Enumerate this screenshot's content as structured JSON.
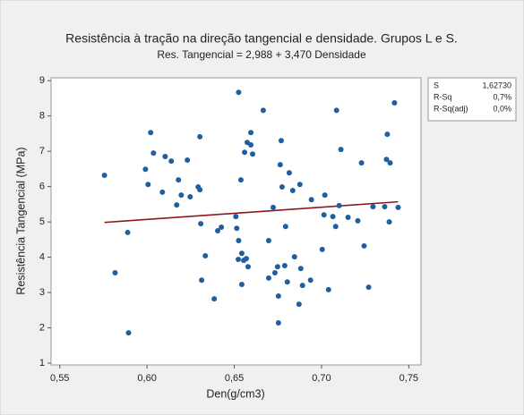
{
  "chart_data": {
    "type": "scatter",
    "title": "Resistência à tração na direção tangencial e densidade. Grupos L e S.",
    "subtitle": "Res. Tangencial = 2,988 + 3,470 Densidade",
    "x_label": "Den(g/cm3)",
    "y_label": "Resistência Tangencial (MPa)",
    "xlim": [
      0.545,
      0.757
    ],
    "ylim": [
      0.95,
      9.08
    ],
    "xticks": [
      {
        "value": 0.55,
        "label": "0,55"
      },
      {
        "value": 0.6,
        "label": "0,60"
      },
      {
        "value": 0.65,
        "label": "0,65"
      },
      {
        "value": 0.7,
        "label": "0,70"
      },
      {
        "value": 0.75,
        "label": "0,75"
      }
    ],
    "yticks": [
      1,
      2,
      3,
      4,
      5,
      6,
      7,
      8,
      9
    ],
    "color": "#1f5fa0",
    "x": [
      0.5756,
      0.5817,
      0.5889,
      0.5894,
      0.5991,
      0.6006,
      0.6021,
      0.6037,
      0.6088,
      0.6104,
      0.6139,
      0.617,
      0.618,
      0.6196,
      0.6231,
      0.6247,
      0.6303,
      0.6293,
      0.6303,
      0.6308,
      0.6313,
      0.6334,
      0.6385,
      0.6405,
      0.6426,
      0.6525,
      0.6509,
      0.6514,
      0.6525,
      0.6538,
      0.6543,
      0.6523,
      0.6543,
      0.6559,
      0.6554,
      0.6569,
      0.6579,
      0.6574,
      0.6595,
      0.6595,
      0.6605,
      0.6666,
      0.6697,
      0.6697,
      0.6723,
      0.6733,
      0.6748,
      0.6753,
      0.6753,
      0.6763,
      0.6769,
      0.6774,
      0.6789,
      0.6794,
      0.6804,
      0.6815,
      0.6835,
      0.6845,
      0.6876,
      0.6871,
      0.6881,
      0.6891,
      0.6937,
      0.6942,
      0.7004,
      0.7014,
      0.7019,
      0.704,
      0.7065,
      0.7081,
      0.7086,
      0.7101,
      0.7111,
      0.7152,
      0.7208,
      0.7229,
      0.7244,
      0.727,
      0.7295,
      0.7372,
      0.7377,
      0.7362,
      0.7393,
      0.7388,
      0.7418,
      0.7439
    ],
    "values": [
      6.32,
      3.56,
      4.7,
      1.86,
      6.49,
      6.06,
      7.53,
      6.95,
      5.84,
      6.85,
      6.72,
      5.48,
      6.19,
      5.76,
      6.75,
      5.71,
      7.41,
      5.99,
      5.91,
      4.95,
      3.35,
      4.04,
      2.82,
      4.75,
      4.85,
      8.67,
      5.15,
      4.82,
      4.47,
      6.19,
      4.11,
      3.94,
      3.23,
      6.97,
      3.91,
      3.96,
      3.73,
      7.25,
      7.53,
      7.18,
      6.92,
      8.16,
      4.47,
      3.41,
      5.41,
      3.56,
      3.73,
      2.14,
      2.9,
      6.62,
      7.3,
      5.99,
      3.76,
      4.87,
      3.3,
      6.39,
      5.89,
      4.01,
      6.06,
      2.67,
      3.68,
      3.2,
      3.35,
      5.63,
      4.22,
      5.2,
      5.76,
      3.08,
      5.15,
      4.87,
      8.16,
      5.46,
      7.05,
      5.13,
      5.03,
      6.67,
      4.32,
      3.15,
      5.43,
      6.77,
      7.48,
      5.43,
      6.67,
      5.0,
      8.37,
      5.41
    ],
    "fit_line": {
      "color": "#8b1a1a",
      "x": [
        0.5756,
        0.7439
      ],
      "values": [
        4.985,
        5.569
      ]
    },
    "stats": [
      [
        "S",
        "1,62730"
      ],
      [
        "R-Sq",
        "0,7%"
      ],
      [
        "R-Sq(adj)",
        "0,0%"
      ]
    ]
  }
}
